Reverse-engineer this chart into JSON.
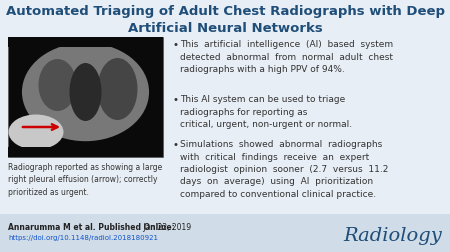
{
  "title_line1": "Automated Triaging of Adult Chest Radiographs with Deep",
  "title_line2": "Artificial Neural Networks",
  "title_color": "#1F4E79",
  "title_fontsize": 9.5,
  "bullet_points": [
    "This  artificial  intelligence  (AI)  based  system\ndetected  abnormal  from  normal  adult  chest\nradiographs with a high PPV of 94%.",
    "This AI system can be used to triage\nradiographs for reporting as\ncritical, urgent, non-urgent or normal.",
    "Simulations  showed  abnormal  radiographs\nwith  critical  findings  receive  an  expert\nradiologist  opinion  sooner  (2.7  versus  11.2\ndays  on  average)  using  AI  prioritization\ncompared to conventional clinical practice."
  ],
  "bullet_color": "#333333",
  "bullet_fontsize": 6.5,
  "caption_text": "Radiograph reported as showing a large\nright pleural effusion (arrow); correctly\nprioritized as urgent.",
  "caption_fontsize": 5.5,
  "caption_color": "#333333",
  "footer_left_bold": "Annarumma M et al. Published Online:",
  "footer_left_normal": " Jan 22, 2019",
  "footer_link": "https://doi.org/10.1148/radiol.2018180921",
  "footer_fontsize": 5.5,
  "footer_color": "#222222",
  "footer_link_color": "#1155CC",
  "radiology_color": "#1F4E79",
  "radiology_fontsize": 14,
  "background_color": "#E8EEF5",
  "footer_bg_color": "#D0DCE8",
  "image_border_color": "#555555",
  "arrow_color": "#CC0000"
}
